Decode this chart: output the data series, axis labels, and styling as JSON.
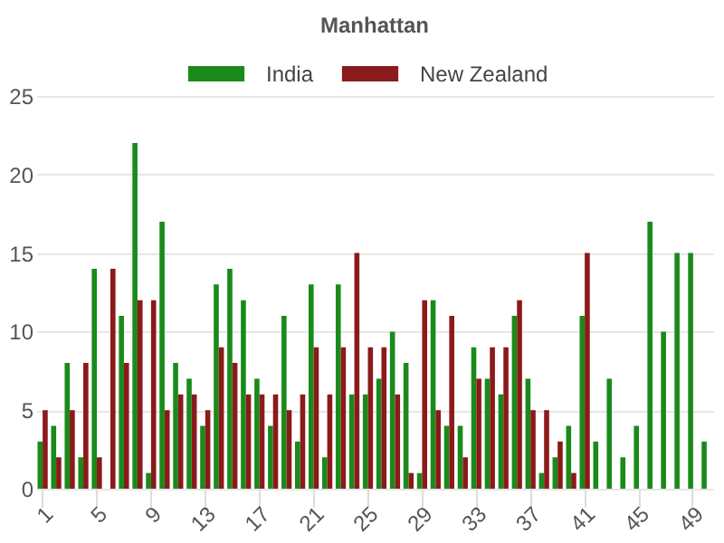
{
  "chart_data": {
    "type": "bar",
    "title": "Manhattan",
    "categories": [
      "1",
      null,
      null,
      null,
      "5",
      null,
      null,
      null,
      "9",
      null,
      null,
      null,
      "13",
      null,
      null,
      null,
      "17",
      null,
      null,
      null,
      "21",
      null,
      null,
      null,
      "25",
      null,
      null,
      null,
      "29",
      null,
      null,
      null,
      "33",
      null,
      null,
      null,
      "37",
      null,
      null,
      null,
      "41",
      null,
      null,
      null,
      "45",
      null,
      null,
      null,
      "49",
      null
    ],
    "series": [
      {
        "name": "India",
        "color": "#1a8a1a",
        "values": [
          3,
          4,
          8,
          2,
          14,
          0,
          11,
          22,
          1,
          17,
          8,
          7,
          4,
          13,
          14,
          12,
          7,
          4,
          11,
          3,
          13,
          2,
          13,
          6,
          6,
          7,
          10,
          8,
          1,
          12,
          4,
          4,
          9,
          7,
          6,
          11,
          7,
          1,
          2,
          4,
          11,
          3,
          7,
          2,
          4,
          17,
          10,
          15,
          15,
          3
        ]
      },
      {
        "name": "New Zealand",
        "color": "#8b1a1a",
        "values": [
          5,
          2,
          5,
          8,
          2,
          14,
          8,
          12,
          12,
          5,
          6,
          6,
          5,
          9,
          8,
          6,
          6,
          6,
          5,
          6,
          9,
          6,
          9,
          15,
          9,
          9,
          6,
          1,
          12,
          5,
          11,
          2,
          7,
          9,
          9,
          12,
          5,
          5,
          3,
          1,
          15,
          null,
          null,
          null,
          null,
          null,
          null,
          null,
          null,
          null
        ]
      }
    ],
    "ylim": [
      0,
      25
    ],
    "yticks": [
      0,
      5,
      10,
      15,
      20,
      25
    ],
    "grid": "y",
    "legend": "top"
  }
}
